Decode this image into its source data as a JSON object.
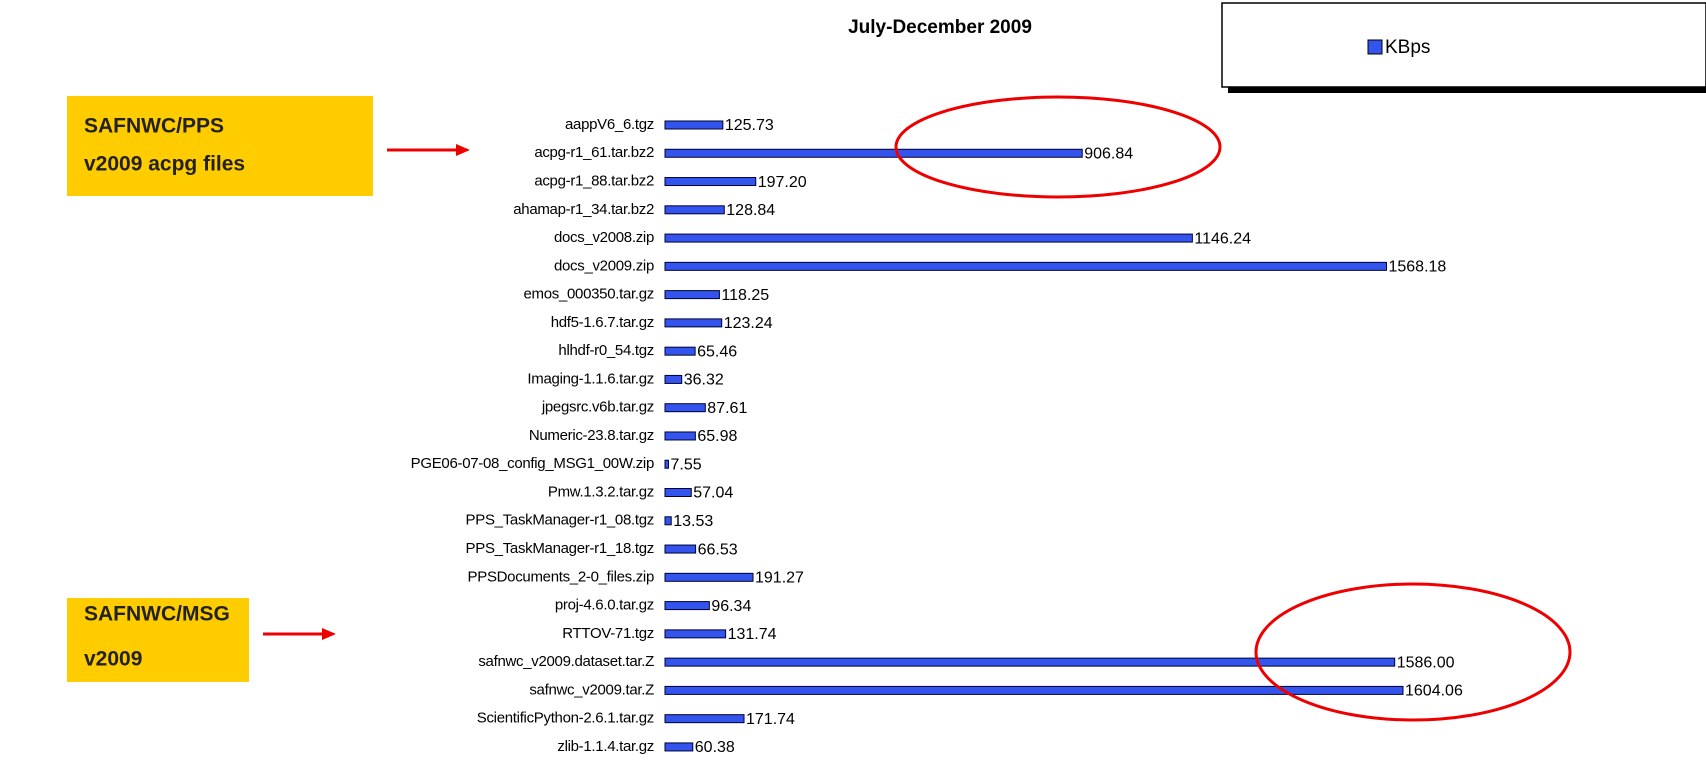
{
  "chart_data": {
    "type": "barh",
    "title": "July-December 2009",
    "categories": [
      "aappV6_6.tgz",
      "acpg-r1_61.tar.bz2",
      "acpg-r1_88.tar.bz2",
      "ahamap-r1_34.tar.bz2",
      "docs_v2008.zip",
      "docs_v2009.zip",
      "emos_000350.tar.gz",
      "hdf5-1.6.7.tar.gz",
      "hlhdf-r0_54.tgz",
      "Imaging-1.1.6.tar.gz",
      "jpegsrc.v6b.tar.gz",
      "Numeric-23.8.tar.gz",
      "PGE06-07-08_config_MSG1_00W.zip",
      "Pmw.1.3.2.tar.gz",
      "PPS_TaskManager-r1_08.tgz",
      "PPS_TaskManager-r1_18.tgz",
      "PPSDocuments_2-0_files.zip",
      "proj-4.6.0.tar.gz",
      "RTTOV-71.tgz",
      "safnwc_v2009.dataset.tar.Z",
      "safnwc_v2009.tar.Z",
      "ScientificPython-2.6.1.tar.gz",
      "zlib-1.1.4.tar.gz"
    ],
    "series": [
      {
        "name": "KBps",
        "color": "#3355ee",
        "values": [
          125.73,
          906.84,
          197.2,
          128.84,
          1146.24,
          1568.18,
          118.25,
          123.24,
          65.46,
          36.32,
          87.61,
          65.98,
          7.55,
          57.04,
          13.53,
          66.53,
          191.27,
          96.34,
          131.74,
          1586,
          1604.06,
          171.74,
          60.38
        ],
        "value_labels": [
          "125.73",
          "906.84",
          "197.20",
          "128.84",
          "1146.24",
          "1568.18",
          "118.25",
          "123.24",
          "65.46",
          "36.32",
          "87.61",
          "65.98",
          "7.55",
          "57.04",
          "13.53",
          "66.53",
          "191.27",
          "96.34",
          "131.74",
          "1586.00",
          "1604.06",
          "171.74",
          "60.38"
        ]
      }
    ],
    "annotations": [
      {
        "lines": [
          "SAFNWC/PPS",
          "v2009 acpg files"
        ]
      },
      {
        "lines": [
          "SAFNWC/MSG",
          "v2009"
        ]
      }
    ]
  }
}
